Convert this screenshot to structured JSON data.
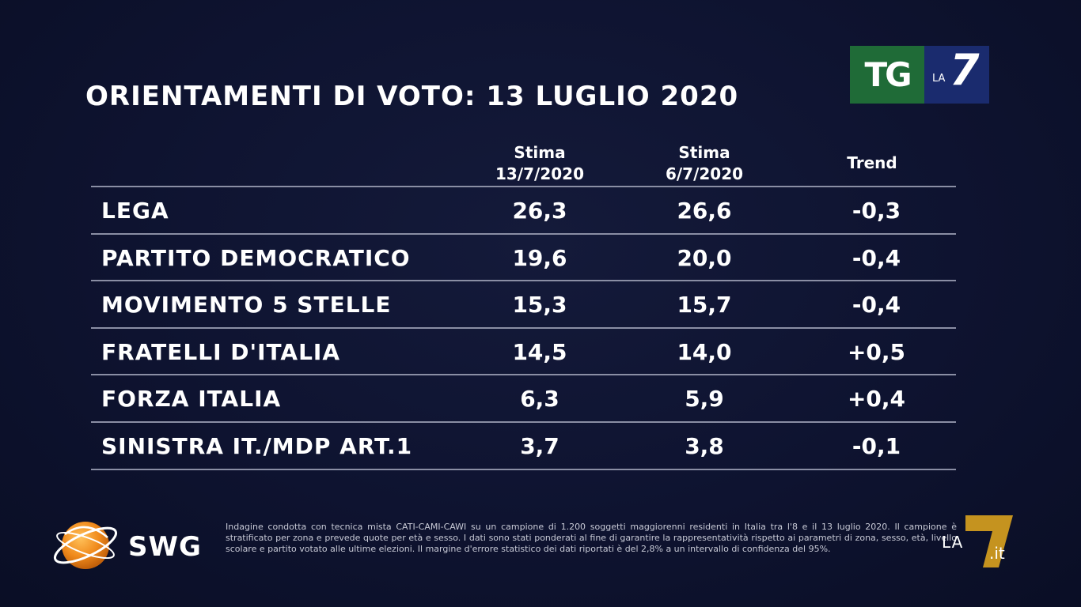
{
  "title": "ORIENTAMENTI DI VOTO: 13 LUGLIO 2020",
  "logo_tg": {
    "tg": "TG",
    "la": "LA",
    "seven": "7"
  },
  "chart_data": {
    "type": "table",
    "columns": [
      {
        "line1": "Stima",
        "line2": "13/7/2020"
      },
      {
        "line1": "Stima",
        "line2": "6/7/2020"
      },
      {
        "line1": "Trend",
        "line2": ""
      }
    ],
    "rows": [
      {
        "party": "LEGA",
        "stima_13": "26,3",
        "stima_6": "26,6",
        "trend": "-0,3"
      },
      {
        "party": "PARTITO DEMOCRATICO",
        "stima_13": "19,6",
        "stima_6": "20,0",
        "trend": "-0,4"
      },
      {
        "party": "MOVIMENTO 5 STELLE",
        "stima_13": "15,3",
        "stima_6": "15,7",
        "trend": "-0,4"
      },
      {
        "party": "FRATELLI D'ITALIA",
        "stima_13": "14,5",
        "stima_6": "14,0",
        "trend": "+0,5"
      },
      {
        "party": "FORZA ITALIA",
        "stima_13": "6,3",
        "stima_6": "5,9",
        "trend": "+0,4"
      },
      {
        "party": "SINISTRA IT./MDP ART.1",
        "stima_13": "3,7",
        "stima_6": "3,8",
        "trend": "-0,1"
      }
    ]
  },
  "swg": {
    "label": "SWG"
  },
  "footnote": "Indagine condotta con tecnica mista CATI-CAMI-CAWI su un campione di 1.200 soggetti maggiorenni residenti in Italia tra l'8 e il 13 luglio 2020. Il campione è stratificato per zona e prevede quote per età e sesso. I dati sono stati ponderati al fine di garantire la rappresentatività rispetto ai parametri di zona, sesso, età, livello scolare e partito votato alle ultime elezioni. Il margine d'errore statistico dei dati riportati è del 2,8% a un intervallo di confidenza del 95%.",
  "la7it": {
    "la": "LA",
    "seven": "7",
    "it": ".it"
  },
  "colors": {
    "background": "#0e1330",
    "tg_green": "#1f6b37",
    "la7_blue": "#1a2b6e",
    "swg_orange": "#f08a1c",
    "la7it_gold": "#d9a21e"
  }
}
